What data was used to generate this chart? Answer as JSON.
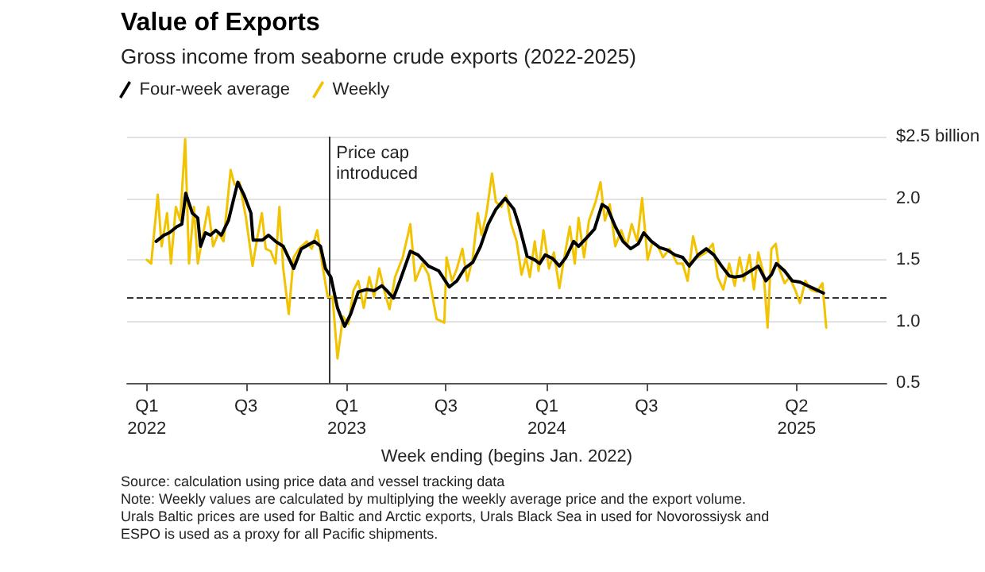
{
  "chart_data": {
    "type": "line",
    "title": "Value of Exports",
    "subtitle": "Gross income from seaborne crude exports (2022-2025)",
    "xlabel": "Week ending (begins Jan. 2022)",
    "annotations": [
      "Source: calculation using price data and vessel tracking data",
      "Note: Weekly values are calculated by multiplying the weekly average price and the export volume.",
      "Urals Baltic prices are used for Baltic and Arctic exports, Urals Black Sea in used for Novorossiysk and",
      "ESPO is used as a proxy for all Pacific shipments."
    ],
    "legend": "top left",
    "grid": "y",
    "marker": "none",
    "line_style": "solid",
    "xlim": [
      "2021-11-26",
      "2025-09-12"
    ],
    "xticks": [
      {
        "value": "2022-01-01",
        "label": "Q1\n2022"
      },
      {
        "value": "2022-07-01",
        "label": "Q3"
      },
      {
        "value": "2023-01-01",
        "label": "Q1\n2023"
      },
      {
        "value": "2023-07-01",
        "label": "Q3"
      },
      {
        "value": "2024-01-01",
        "label": "Q1\n2024"
      },
      {
        "value": "2024-07-01",
        "label": "Q3"
      },
      {
        "value": "2025-04-01",
        "label": "Q2\n2025"
      }
    ],
    "ylim": [
      0.5,
      2.5
    ],
    "yticks": [
      0.5,
      {
        "value": 1,
        "label": "1.0"
      },
      1.5,
      {
        "value": 2,
        "label": "2.0"
      },
      {
        "value": 2.5,
        "label": "$2.5 billion"
      }
    ],
    "ref_lines": [
      {
        "axis": "x",
        "value": "2022-12-01",
        "label": "Price cap introduced",
        "color": "#333333",
        "line_style": "solid"
      },
      {
        "axis": "y",
        "value": 1.2,
        "label": null,
        "color": "#333333",
        "line_style": "dashed"
      }
    ],
    "series": [
      {
        "name": "Four-week average",
        "color": "#000000",
        "x": [
          "2022-01-18",
          "2022-02-01",
          "2022-02-11",
          "2022-02-25",
          "2022-03-06",
          "2022-03-13",
          "2022-03-25",
          "2022-04-04",
          "2022-04-09",
          "2022-04-18",
          "2022-04-27",
          "2022-05-07",
          "2022-05-17",
          "2022-05-30",
          "2022-06-16",
          "2022-06-28",
          "2022-07-10",
          "2022-07-14",
          "2022-07-31",
          "2022-08-11",
          "2022-08-24",
          "2022-09-07",
          "2022-09-26",
          "2022-10-10",
          "2022-11-03",
          "2022-11-14",
          "2022-11-23",
          "2022-12-03",
          "2022-12-15",
          "2022-12-28",
          "2023-01-08",
          "2023-01-22",
          "2023-02-06",
          "2023-02-20",
          "2023-03-06",
          "2023-03-15",
          "2023-03-27",
          "2023-04-08",
          "2023-04-27",
          "2023-05-11",
          "2023-05-30",
          "2023-06-18",
          "2023-07-07",
          "2023-07-21",
          "2023-08-04",
          "2023-08-19",
          "2023-09-02",
          "2023-09-16",
          "2023-09-30",
          "2023-10-17",
          "2023-11-02",
          "2023-11-12",
          "2023-11-26",
          "2023-12-10",
          "2023-12-19",
          "2023-12-29",
          "2024-01-12",
          "2024-01-24",
          "2024-02-05",
          "2024-02-19",
          "2024-02-28",
          "2024-03-14",
          "2024-03-28",
          "2024-04-11",
          "2024-04-21",
          "2024-05-05",
          "2024-05-19",
          "2024-06-02",
          "2024-06-16",
          "2024-06-26",
          "2024-07-10",
          "2024-07-25",
          "2024-08-08",
          "2024-08-22",
          "2024-09-05",
          "2024-09-17",
          "2024-10-03",
          "2024-10-18",
          "2024-11-01",
          "2024-11-15",
          "2024-11-29",
          "2024-12-09",
          "2024-12-23",
          "2025-01-07",
          "2025-01-21",
          "2025-02-04",
          "2025-02-14",
          "2025-02-23",
          "2025-03-10",
          "2025-03-24",
          "2025-04-07",
          "2025-04-21",
          "2025-05-06",
          "2025-05-20"
        ],
        "values": [
          1.65,
          1.7,
          1.72,
          1.77,
          1.79,
          2.04,
          1.88,
          1.84,
          1.61,
          1.72,
          1.7,
          1.74,
          1.7,
          1.82,
          2.13,
          2.02,
          1.88,
          1.66,
          1.66,
          1.7,
          1.65,
          1.61,
          1.43,
          1.59,
          1.65,
          1.61,
          1.43,
          1.36,
          1.11,
          0.96,
          1.06,
          1.24,
          1.26,
          1.25,
          1.29,
          1.25,
          1.19,
          1.33,
          1.57,
          1.54,
          1.45,
          1.41,
          1.28,
          1.33,
          1.43,
          1.48,
          1.61,
          1.79,
          1.91,
          2.0,
          1.91,
          1.77,
          1.53,
          1.5,
          1.47,
          1.54,
          1.51,
          1.45,
          1.52,
          1.65,
          1.61,
          1.68,
          1.75,
          1.95,
          1.92,
          1.77,
          1.65,
          1.59,
          1.63,
          1.72,
          1.65,
          1.6,
          1.58,
          1.54,
          1.52,
          1.45,
          1.54,
          1.59,
          1.54,
          1.45,
          1.37,
          1.36,
          1.37,
          1.41,
          1.45,
          1.33,
          1.38,
          1.47,
          1.41,
          1.33,
          1.32,
          1.29,
          1.26,
          1.23
        ]
      },
      {
        "name": "Weekly",
        "color": "#f2c300",
        "x": [
          "2022-01-01",
          "2022-01-09",
          "2022-01-21",
          "2022-01-28",
          "2022-02-07",
          "2022-02-14",
          "2022-02-23",
          "2022-03-03",
          "2022-03-12",
          "2022-03-19",
          "2022-03-28",
          "2022-04-04",
          "2022-04-13",
          "2022-04-23",
          "2022-05-02",
          "2022-05-12",
          "2022-05-21",
          "2022-06-03",
          "2022-06-10",
          "2022-06-19",
          "2022-07-01",
          "2022-07-13",
          "2022-07-22",
          "2022-07-30",
          "2022-08-06",
          "2022-08-15",
          "2022-08-24",
          "2022-08-31",
          "2022-09-07",
          "2022-09-17",
          "2022-09-26",
          "2022-10-06",
          "2022-10-20",
          "2022-10-29",
          "2022-11-08",
          "2022-11-17",
          "2022-11-27",
          "2022-12-06",
          "2022-12-15",
          "2022-12-25",
          "2023-01-04",
          "2023-01-13",
          "2023-01-22",
          "2023-02-01",
          "2023-02-11",
          "2023-02-20",
          "2023-03-01",
          "2023-03-11",
          "2023-03-20",
          "2023-03-30",
          "2023-04-13",
          "2023-04-27",
          "2023-05-06",
          "2023-05-19",
          "2023-05-30",
          "2023-06-14",
          "2023-06-28",
          "2023-07-02",
          "2023-07-12",
          "2023-07-21",
          "2023-07-31",
          "2023-08-09",
          "2023-08-19",
          "2023-08-28",
          "2023-09-04",
          "2023-09-13",
          "2023-09-23",
          "2023-09-30",
          "2023-10-10",
          "2023-10-19",
          "2023-10-28",
          "2023-11-07",
          "2023-11-16",
          "2023-11-24",
          "2023-12-01",
          "2023-12-10",
          "2023-12-17",
          "2023-12-26",
          "2024-01-05",
          "2024-01-14",
          "2024-01-24",
          "2024-01-31",
          "2024-02-12",
          "2024-02-21",
          "2024-02-28",
          "2024-03-09",
          "2024-03-18",
          "2024-03-30",
          "2024-04-08",
          "2024-04-16",
          "2024-04-25",
          "2024-05-05",
          "2024-05-16",
          "2024-05-26",
          "2024-06-04",
          "2024-06-14",
          "2024-06-23",
          "2024-07-03",
          "2024-07-12",
          "2024-07-22",
          "2024-07-31",
          "2024-08-12",
          "2024-08-26",
          "2024-09-05",
          "2024-09-14",
          "2024-09-24",
          "2024-10-03",
          "2024-10-18",
          "2024-10-30",
          "2024-11-08",
          "2024-11-18",
          "2024-11-29",
          "2024-12-09",
          "2024-12-18",
          "2024-12-26",
          "2025-01-05",
          "2025-01-13",
          "2025-01-21",
          "2025-01-31",
          "2025-02-07",
          "2025-02-14",
          "2025-02-22",
          "2025-02-28",
          "2025-03-10",
          "2025-03-19",
          "2025-03-29",
          "2025-04-07",
          "2025-04-17",
          "2025-04-26",
          "2025-05-08",
          "2025-05-18",
          "2025-05-25"
        ],
        "values": [
          1.5,
          1.47,
          2.03,
          1.61,
          1.88,
          1.47,
          1.93,
          1.82,
          2.48,
          1.47,
          1.93,
          1.47,
          1.69,
          1.93,
          1.61,
          1.72,
          1.65,
          2.23,
          2.11,
          2.13,
          1.84,
          1.45,
          1.69,
          1.88,
          1.59,
          1.57,
          1.47,
          1.93,
          1.43,
          1.06,
          1.52,
          1.59,
          1.65,
          1.59,
          1.74,
          1.47,
          1.2,
          1.2,
          0.7,
          1.04,
          0.98,
          1.25,
          1.33,
          1.11,
          1.36,
          1.2,
          1.43,
          1.24,
          1.1,
          1.36,
          1.52,
          1.79,
          1.33,
          1.47,
          1.38,
          1.02,
          0.99,
          1.52,
          1.33,
          1.43,
          1.59,
          1.33,
          1.52,
          1.88,
          1.7,
          1.88,
          2.2,
          1.97,
          1.93,
          2.02,
          1.79,
          1.65,
          1.38,
          1.52,
          1.36,
          1.65,
          1.41,
          1.74,
          1.43,
          1.56,
          1.27,
          1.47,
          1.77,
          1.47,
          1.84,
          1.52,
          1.82,
          1.97,
          2.13,
          1.82,
          1.95,
          1.61,
          1.74,
          1.61,
          1.79,
          1.65,
          2.0,
          1.5,
          1.65,
          1.61,
          1.52,
          1.59,
          1.47,
          1.47,
          1.33,
          1.69,
          1.52,
          1.56,
          1.63,
          1.36,
          1.26,
          1.47,
          1.29,
          1.52,
          1.33,
          1.54,
          1.26,
          1.56,
          1.38,
          0.95,
          1.59,
          1.63,
          1.43,
          1.31,
          1.36,
          1.26,
          1.15,
          1.33,
          1.26,
          1.24,
          1.31,
          0.95
        ]
      }
    ]
  }
}
